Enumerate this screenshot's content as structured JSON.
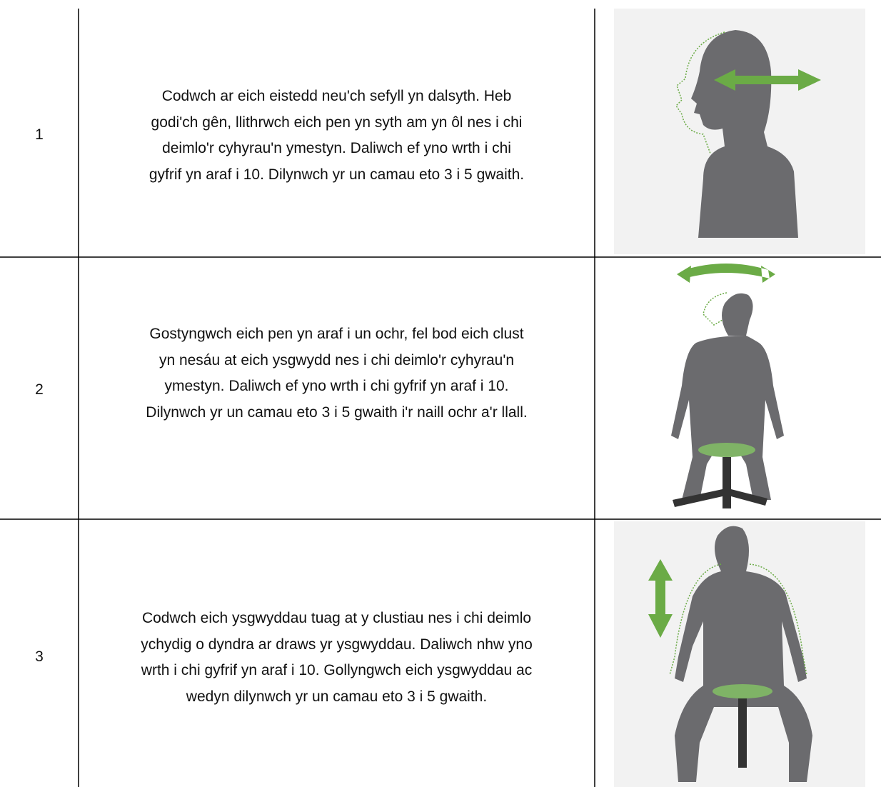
{
  "table": {
    "rows": [
      {
        "number": "1",
        "lines": [
          "Codwch ar eich eistedd neu'ch sefyll yn dalsyth. Heb",
          "godi'ch gên, llithrwch eich pen yn syth am yn ôl nes i chi",
          "deimlo'r cyhyrau'n ymestyn. Daliwch ef yno wrth i chi",
          "gyfrif yn araf i 10. Dilynwch yr un camau eto 3 i 5 gwaith."
        ]
      },
      {
        "number": "2",
        "lines": [
          "Gostyngwch eich pen yn araf i un ochr, fel bod eich clust",
          "yn nesáu at eich ysgwydd nes i chi deimlo'r cyhyrau'n",
          "ymestyn. Daliwch ef yno wrth i chi gyfrif yn araf i 10.",
          "Dilynwch yr un camau eto 3 i 5 gwaith i'r naill ochr a'r llall."
        ]
      },
      {
        "number": "3",
        "lines": [
          "Codwch eich ysgwyddau tuag at y clustiau nes i chi deimlo",
          "ychydig o dyndra ar draws yr ysgwyddau. Daliwch nhw yno",
          "wrth i chi gyfrif yn araf i 10. Gollyngwch eich ysgwyddau ac",
          "wedyn dilynwch yr un camau eto 3 i 5 gwaith."
        ]
      }
    ]
  }
}
